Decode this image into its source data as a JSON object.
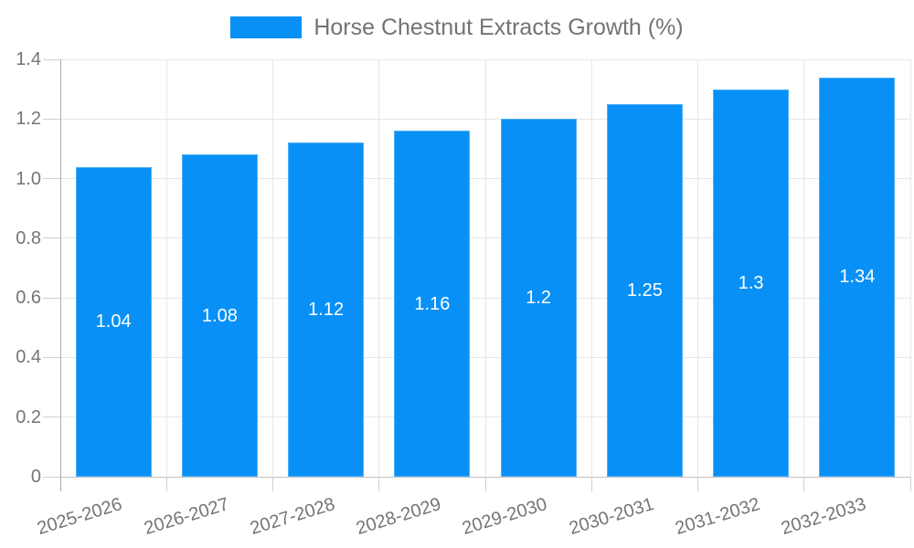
{
  "chart_data": {
    "type": "bar",
    "title": "Horse Chestnut Extracts Growth (%)",
    "legend_position": "top",
    "categories": [
      "2025-2026",
      "2026-2027",
      "2027-2028",
      "2028-2029",
      "2029-2030",
      "2030-2031",
      "2031-2032",
      "2032-2033"
    ],
    "values": [
      1.04,
      1.08,
      1.12,
      1.16,
      1.2,
      1.25,
      1.3,
      1.34
    ],
    "value_labels": [
      "1.04",
      "1.08",
      "1.12",
      "1.16",
      "1.2",
      "1.25",
      "1.3",
      "1.34"
    ],
    "xlabel": "",
    "ylabel": "",
    "ylim": [
      0,
      1.4
    ],
    "y_ticks": [
      "1.4",
      "1.2",
      "1.0",
      "0.8",
      "0.6",
      "0.4",
      "0.2",
      "0"
    ],
    "grid": true,
    "x_label_rotation_deg": -17,
    "colors": {
      "bar": "#0990F6",
      "bar_value_text": "#ffffff",
      "grid": "#e7e7e7",
      "zero_line": "#c2c2c2",
      "axis_line": "#adadad",
      "tick": "#cfcfcf",
      "axis_text": "#757575",
      "title_text": "#737373"
    }
  }
}
